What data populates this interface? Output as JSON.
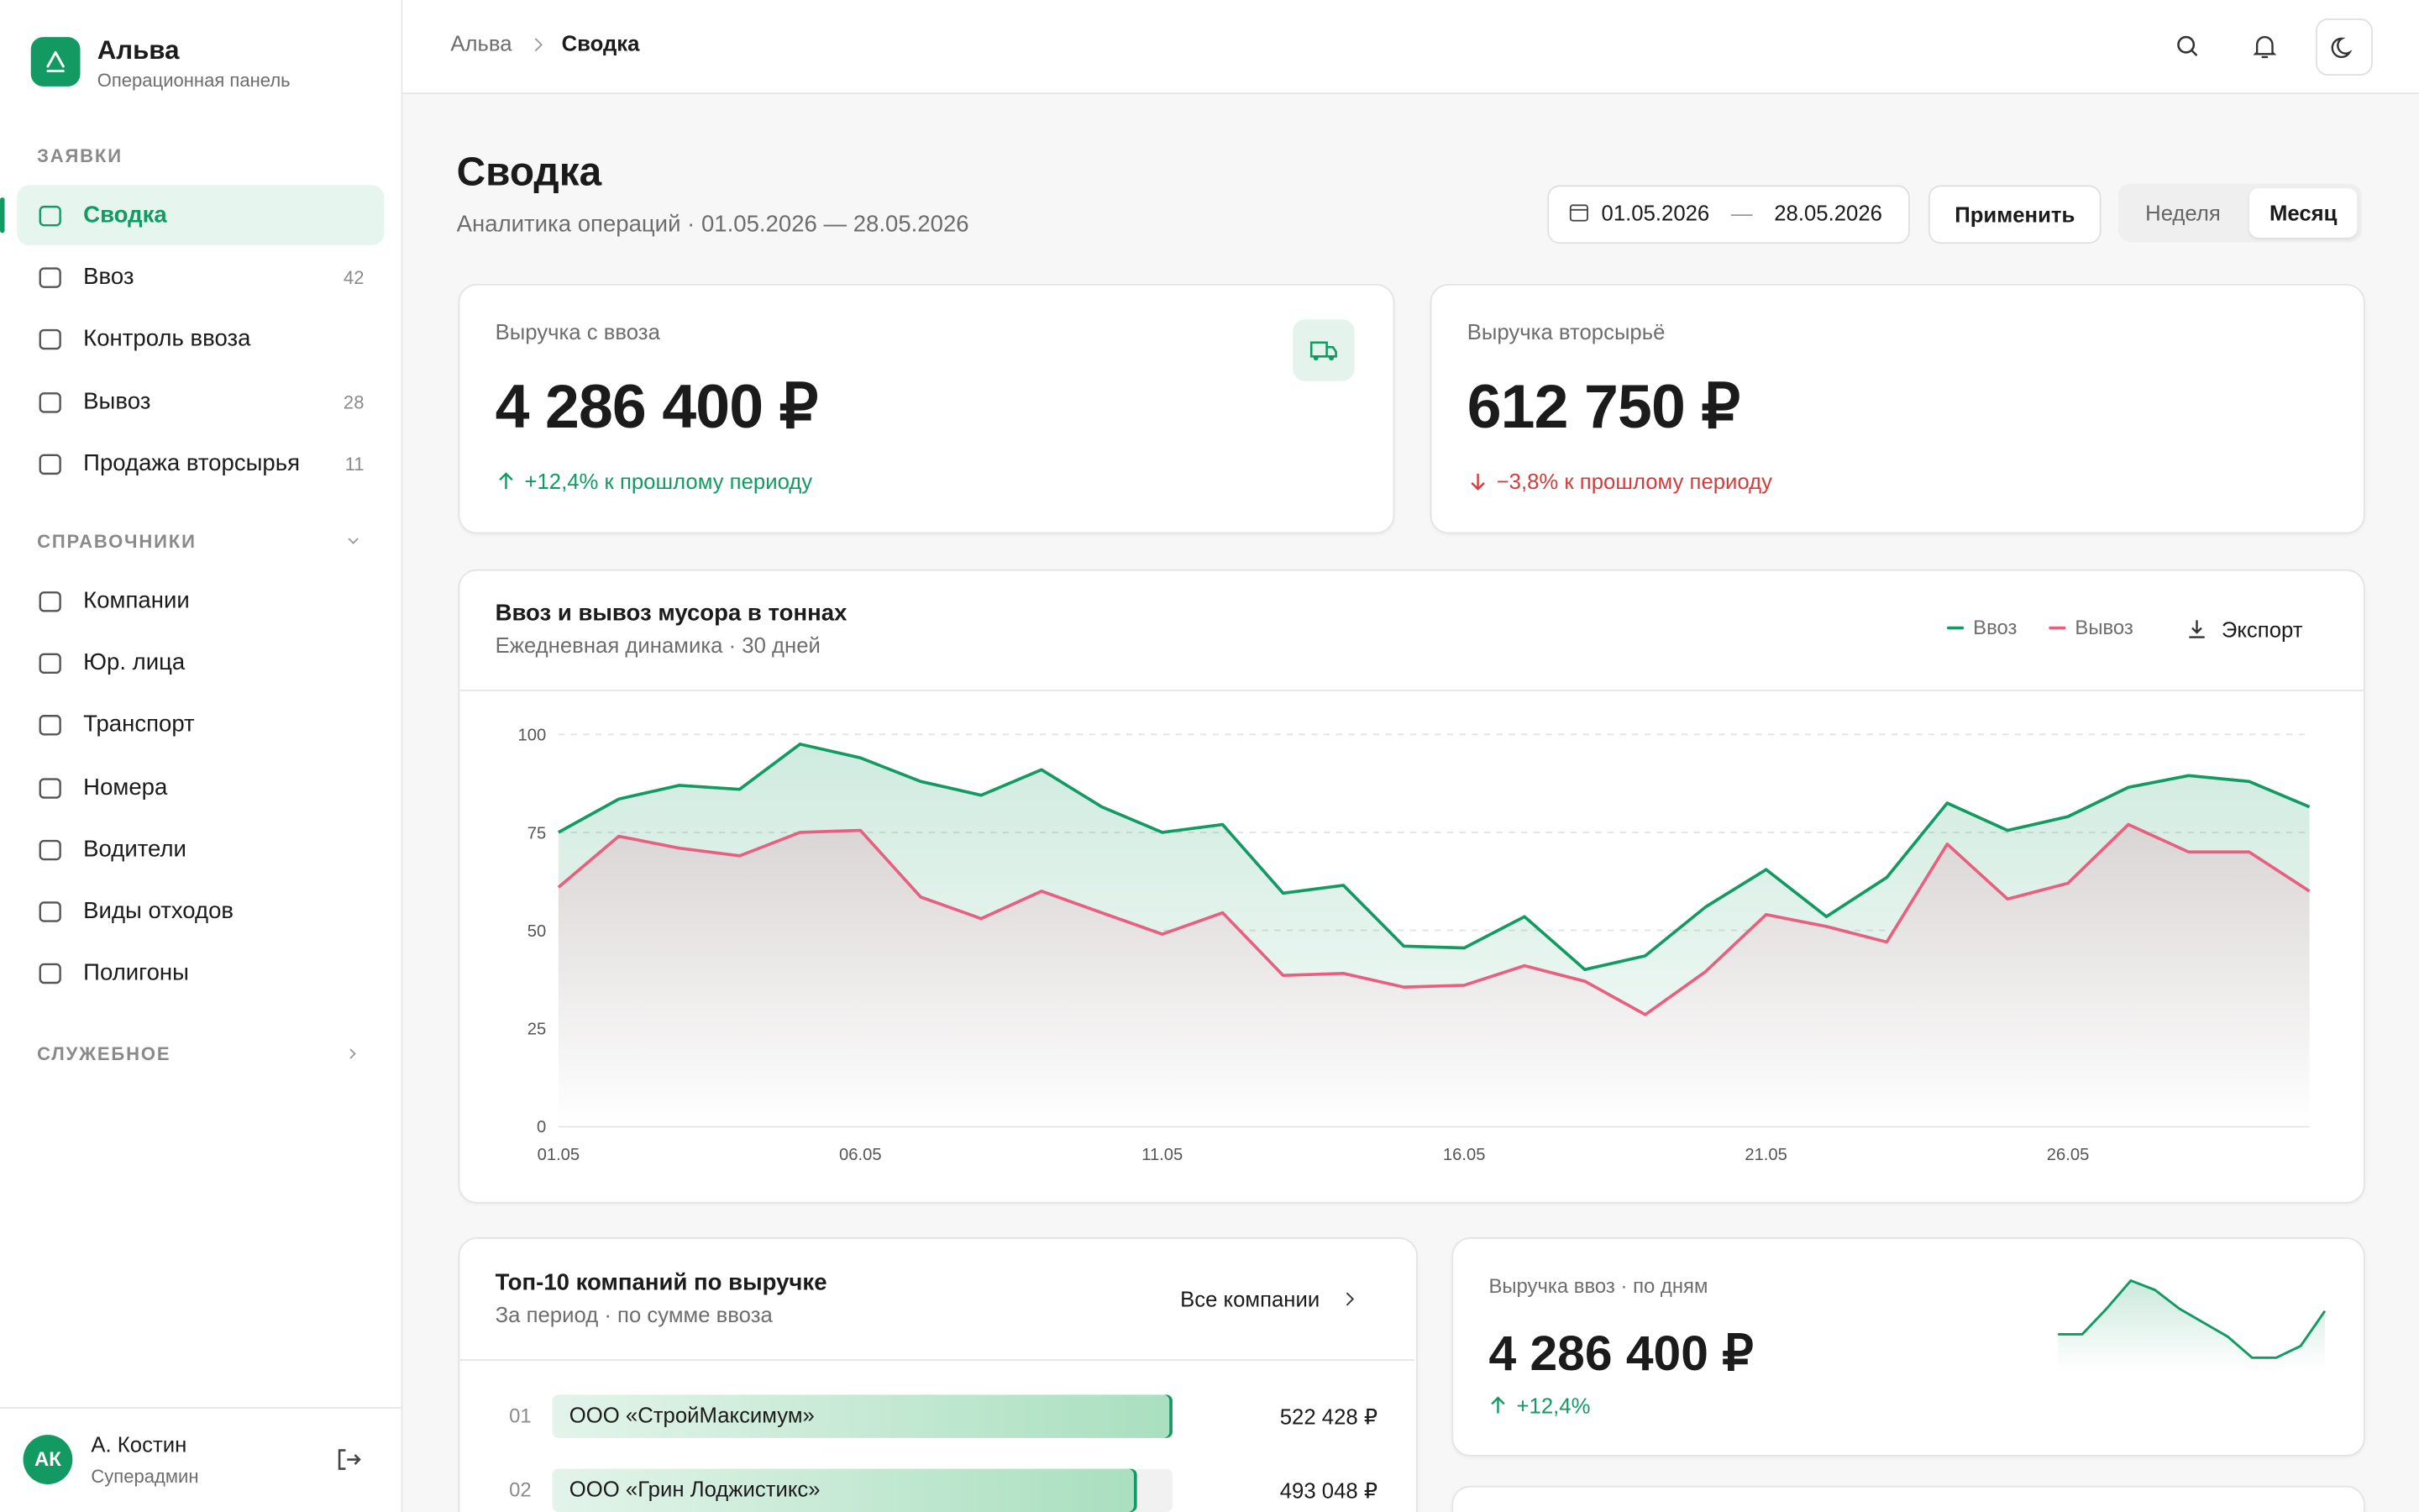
{
  "sidebar": {
    "brand": "Альва",
    "brand_sub": "Операционная панель",
    "sections": [
      {
        "title": "ЗАЯВКИ",
        "items": [
          {
            "label": "Сводка"
          },
          {
            "label": "Ввоз",
            "count": 42
          },
          {
            "label": "Контроль ввоза"
          },
          {
            "label": "Вывоз",
            "count": 28
          },
          {
            "label": "Продажа вторсырья",
            "count": 11
          }
        ]
      },
      {
        "title": "СПРАВОЧНИКИ",
        "items": [
          {
            "label": "Компании"
          },
          {
            "label": "Юр. лица"
          },
          {
            "label": "Транспорт"
          },
          {
            "label": "Номера"
          },
          {
            "label": "Водители"
          },
          {
            "label": "Виды отходов"
          },
          {
            "label": "Полигоны"
          }
        ]
      },
      {
        "title": "СЛУЖЕБНОЕ",
        "items": []
      }
    ],
    "user": {
      "initials": "АК",
      "name": "А. Костин",
      "role": "Суперадмин"
    }
  },
  "breadcrumbs": [
    "Альва",
    "Сводка"
  ],
  "page": {
    "title": "Сводка",
    "subtitle": "Аналитика операций · 01.05.2026 — 28.05.2026",
    "date_from": "01.05.2026",
    "date_sep": "—",
    "date_to": "28.05.2026",
    "apply": "Применить",
    "periods": [
      "Неделя",
      "Месяц"
    ]
  },
  "kpis": [
    {
      "label": "Выручка с ввоза",
      "value": "4 286 400 ₽",
      "change": "+12,4% к прошлому периоду",
      "trend": "up"
    },
    {
      "label": "Выручка вторсырьё",
      "value": "612 750 ₽",
      "change": "−3,8% к прошлому периоду",
      "trend": "down"
    }
  ],
  "chart_data": {
    "type": "line",
    "title": "Ввоз и вывоз мусора в тоннах",
    "subtitle": "Ежедневная динамика · 30 дней",
    "export": "Экспорт",
    "categories": [
      "01.05",
      null,
      null,
      null,
      null,
      "06.05",
      null,
      null,
      null,
      null,
      "11.05",
      null,
      null,
      null,
      null,
      "16.05",
      null,
      null,
      null,
      null,
      "21.05",
      null,
      null,
      null,
      null,
      "26.05",
      null,
      null,
      null,
      null
    ],
    "series": [
      {
        "name": "Ввоз",
        "color": "#129a62",
        "values": [
          75,
          83.5,
          87,
          86,
          97.5,
          94,
          88,
          84.5,
          91,
          81.5,
          75,
          77,
          59.5,
          61.5,
          46,
          45.5,
          53.5,
          40,
          43.5,
          56,
          65.5,
          53.5,
          63.5,
          82.5,
          75.5,
          79,
          86.5,
          89.5,
          88,
          81.5
        ]
      },
      {
        "name": "Вывоз",
        "color": "#e8607f",
        "values": [
          61,
          74,
          71,
          69,
          75,
          75.5,
          58.5,
          53,
          60,
          54.5,
          49,
          54.5,
          38.5,
          39,
          35.5,
          36,
          41,
          37,
          28.5,
          39.5,
          54,
          51,
          47,
          72,
          58,
          62,
          77,
          70,
          70,
          60
        ]
      }
    ],
    "ylim": [
      0,
      100
    ],
    "yticks": [
      0,
      25,
      50,
      75,
      100
    ],
    "grid": true
  },
  "sparkline_card": {
    "title": "Выручка ввоз · по дням",
    "value": "4 286 400 ₽",
    "change": "+12,4%",
    "values": [
      54,
      54,
      76,
      100,
      92,
      76,
      64,
      52,
      34,
      34,
      44,
      74
    ]
  },
  "top_companies": {
    "title": "Топ-10 компаний по выручке",
    "subtitle": "За период · по сумме ввоза",
    "link": "Все компании",
    "rows": [
      {
        "rank": "01",
        "name": "ООО «СтройМаксимум»",
        "value": 522428,
        "value_label": "522 428 ₽"
      },
      {
        "rank": "02",
        "name": "ООО «Грин Лоджистикс»",
        "value": 493048,
        "value_label": "493 048 ₽"
      }
    ]
  }
}
